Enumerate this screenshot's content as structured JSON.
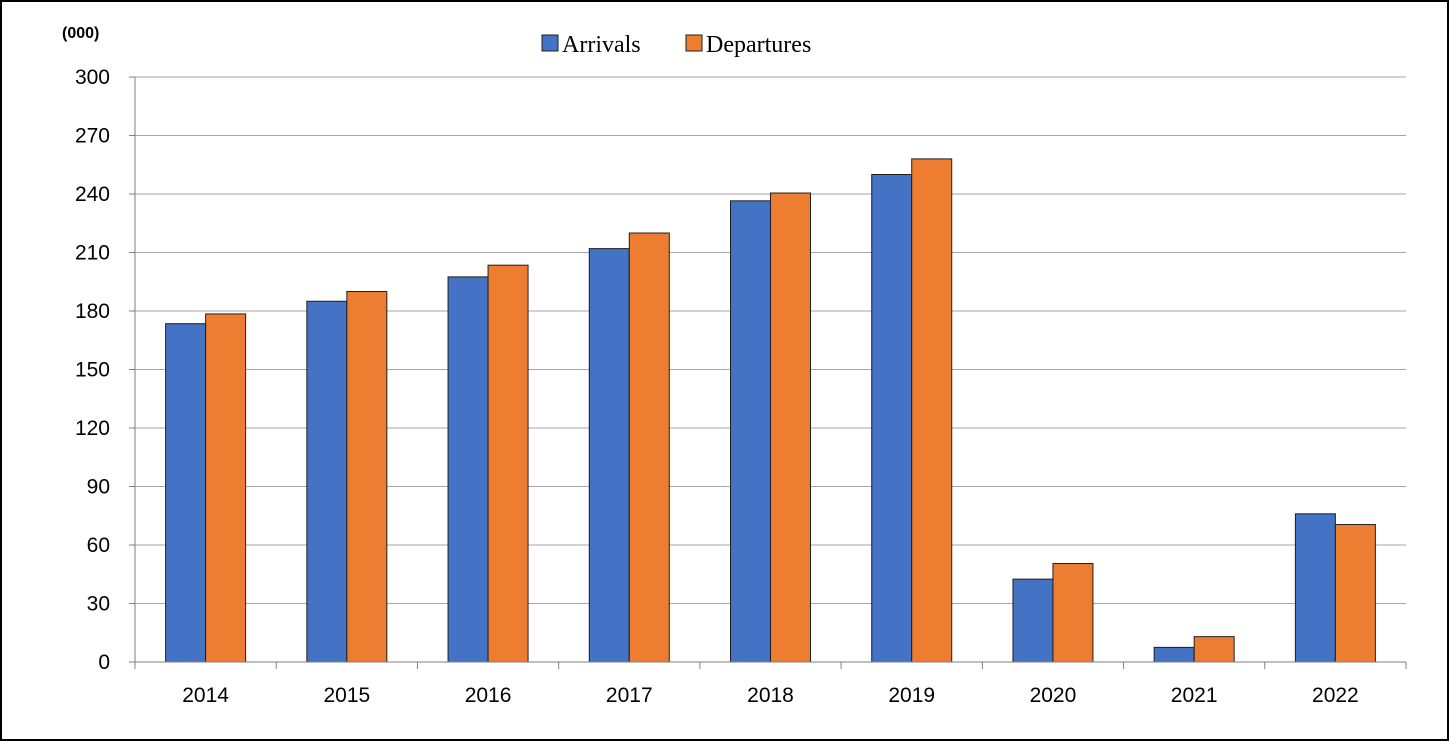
{
  "chart_data": {
    "type": "bar",
    "unit_label": "(000)",
    "categories": [
      "2014",
      "2015",
      "2016",
      "2017",
      "2018",
      "2019",
      "2020",
      "2021",
      "2022"
    ],
    "series": [
      {
        "name": "Arrivals",
        "color": "#4472C4",
        "values": [
          173.5,
          185,
          197.5,
          212,
          236.5,
          250,
          42.5,
          7.5,
          76
        ]
      },
      {
        "name": "Departures",
        "color": "#ED7D31",
        "values": [
          178.5,
          190,
          203.5,
          220,
          240.5,
          258,
          50.5,
          13,
          70.5
        ]
      }
    ],
    "yticks": [
      "0",
      "30",
      "60",
      "90",
      "120",
      "150",
      "180",
      "210",
      "240",
      "270",
      "300"
    ],
    "ylim": [
      0,
      300
    ],
    "grid": true,
    "legend_position": "top-center"
  }
}
